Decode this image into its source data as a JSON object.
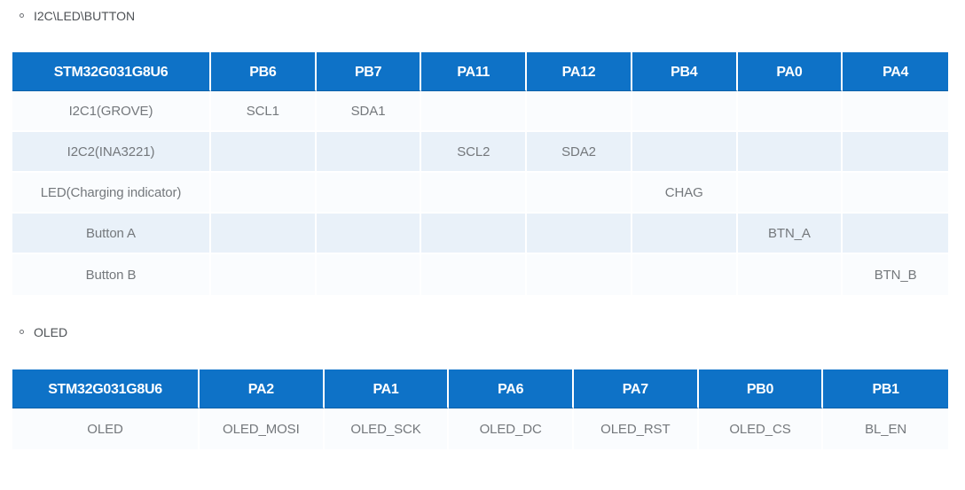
{
  "theme": {
    "header_bg": "#0e72c7",
    "header_text": "#ffffff",
    "row_light_bg": "#fafcfe",
    "row_alt_bg": "#e9f1f9",
    "cell_text": "#74787c",
    "section_text": "#4e5256"
  },
  "sections": [
    {
      "title": "I2C\\LED\\BUTTON",
      "table": {
        "headers": [
          "STM32G031G8U6",
          "PB6",
          "PB7",
          "PA11",
          "PA12",
          "PB4",
          "PA0",
          "PA4"
        ],
        "rows": [
          [
            "I2C1(GROVE)",
            "SCL1",
            "SDA1",
            "",
            "",
            "",
            "",
            ""
          ],
          [
            "I2C2(INA3221)",
            "",
            "",
            "SCL2",
            "SDA2",
            "",
            "",
            ""
          ],
          [
            "LED(Charging indicator)",
            "",
            "",
            "",
            "",
            "CHAG",
            "",
            ""
          ],
          [
            "Button A",
            "",
            "",
            "",
            "",
            "",
            "BTN_A",
            ""
          ],
          [
            "Button B",
            "",
            "",
            "",
            "",
            "",
            "",
            "BTN_B"
          ]
        ]
      }
    },
    {
      "title": "OLED",
      "table": {
        "headers": [
          "STM32G031G8U6",
          "PA2",
          "PA1",
          "PA6",
          "PA7",
          "PB0",
          "PB1"
        ],
        "rows": [
          [
            "OLED",
            "OLED_MOSI",
            "OLED_SCK",
            "OLED_DC",
            "OLED_RST",
            "OLED_CS",
            "BL_EN"
          ]
        ]
      }
    }
  ]
}
